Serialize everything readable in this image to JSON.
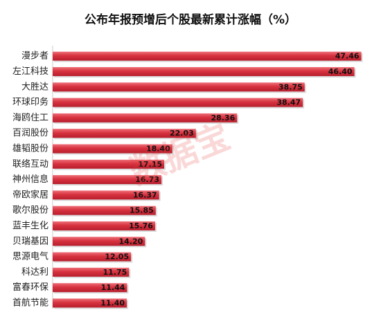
{
  "chart_data": {
    "type": "bar",
    "orientation": "horizontal",
    "title": "公布年报预增后个股最新累计涨幅（%）",
    "categories": [
      "漫步者",
      "左江科技",
      "大胜达",
      "环球印务",
      "海鸥住工",
      "百润股份",
      "雄韬股份",
      "联络互动",
      "神州信息",
      "帝欧家居",
      "歌尔股份",
      "蓝丰生化",
      "贝瑞基因",
      "思源电气",
      "科达利",
      "富春环保",
      "首航节能"
    ],
    "values": [
      47.46,
      46.4,
      38.75,
      38.47,
      28.36,
      22.03,
      18.4,
      17.15,
      16.73,
      16.37,
      15.85,
      15.76,
      14.2,
      12.05,
      11.75,
      11.44,
      11.4
    ],
    "xlim": [
      0,
      49
    ],
    "grid": false,
    "legend": "none",
    "bar_color": "#cf2a3a",
    "watermark": "数据宝"
  }
}
